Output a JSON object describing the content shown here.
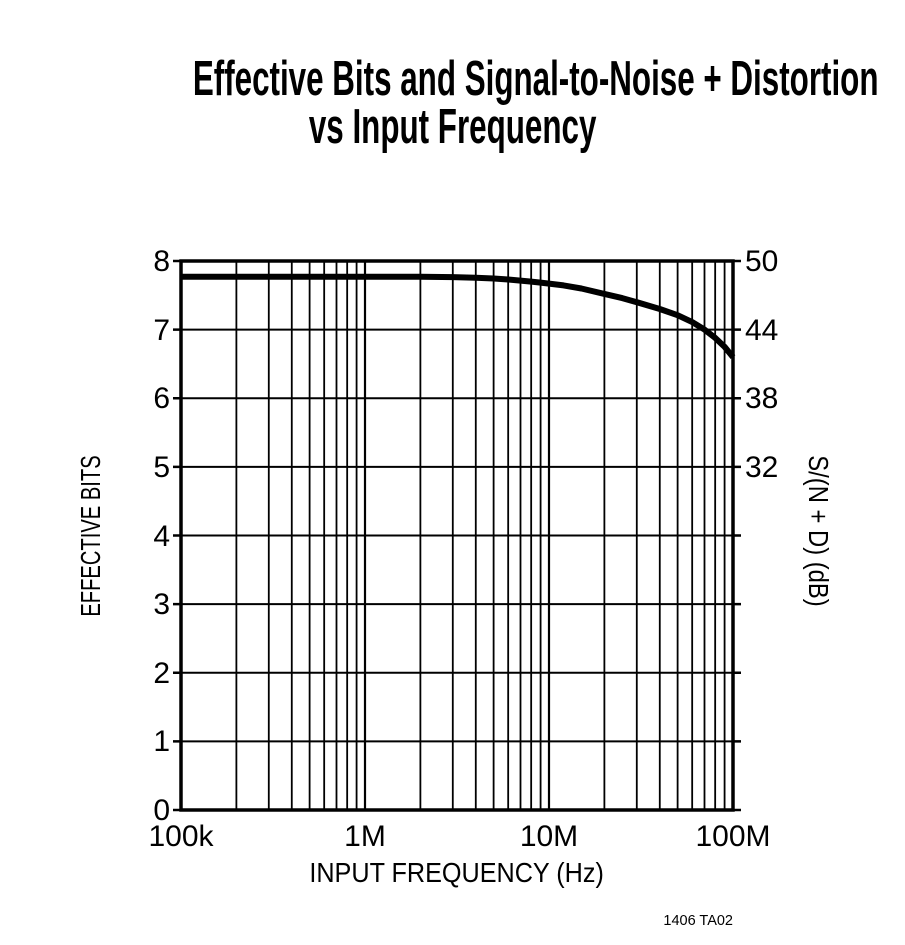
{
  "page": {
    "background": "#FFFFFF",
    "ink": "#000000"
  },
  "title": {
    "line1": "Effective Bits and Signal-to-Noise + Distortion",
    "line2": "vs Input Frequency"
  },
  "figure_note": "1406 TA02",
  "chart_data": {
    "type": "line",
    "title": "Effective Bits and Signal-to-Noise + Distortion vs Input Frequency",
    "xlabel": "INPUT FREQUENCY (Hz)",
    "ylabel_left": "EFFECTIVE BITS",
    "ylabel_right": "S/(N + D) (dB)",
    "x_scale": "log",
    "x_range_hz": [
      100000,
      100000000
    ],
    "x_ticks": [
      {
        "value_hz": 100000,
        "label": "100k"
      },
      {
        "value_hz": 1000000,
        "label": "1M"
      },
      {
        "value_hz": 10000000,
        "label": "10M"
      },
      {
        "value_hz": 100000000,
        "label": "100M"
      }
    ],
    "y_left_range": [
      0,
      8
    ],
    "y_left_ticks": [
      8,
      7,
      6,
      5,
      4,
      3,
      2,
      1,
      0
    ],
    "y_right_ticks": [
      {
        "label": "50",
        "at_bits": 8
      },
      {
        "label": "44",
        "at_bits": 7
      },
      {
        "label": "38",
        "at_bits": 6
      },
      {
        "label": "32",
        "at_bits": 5
      }
    ],
    "grid": {
      "x_minor_log": true,
      "y_unit_lines": true
    },
    "legend": "none",
    "series": [
      {
        "name": "Effective Bits",
        "color": "#000000",
        "points_hz_bits": [
          [
            100000,
            7.77
          ],
          [
            200000,
            7.77
          ],
          [
            300000,
            7.77
          ],
          [
            500000,
            7.77
          ],
          [
            700000,
            7.77
          ],
          [
            1000000,
            7.77
          ],
          [
            1500000,
            7.77
          ],
          [
            2000000,
            7.77
          ],
          [
            3000000,
            7.765
          ],
          [
            4000000,
            7.755
          ],
          [
            5000000,
            7.745
          ],
          [
            6000000,
            7.73
          ],
          [
            7000000,
            7.715
          ],
          [
            8000000,
            7.7
          ],
          [
            9000000,
            7.685
          ],
          [
            10000000,
            7.67
          ],
          [
            12000000,
            7.645
          ],
          [
            15000000,
            7.6
          ],
          [
            20000000,
            7.52
          ],
          [
            25000000,
            7.46
          ],
          [
            30000000,
            7.4
          ],
          [
            40000000,
            7.3
          ],
          [
            50000000,
            7.21
          ],
          [
            60000000,
            7.11
          ],
          [
            70000000,
            7.0
          ],
          [
            80000000,
            6.88
          ],
          [
            90000000,
            6.75
          ],
          [
            100000000,
            6.6
          ]
        ]
      }
    ]
  }
}
